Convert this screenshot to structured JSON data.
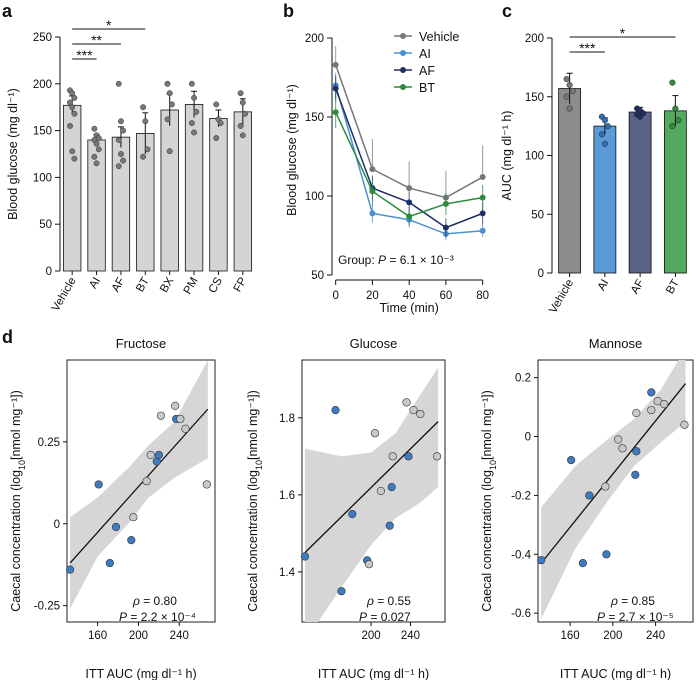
{
  "chart_data": [
    {
      "panel": "a",
      "type": "bar",
      "ylabel": "Blood glucose (mg dl⁻¹)",
      "ylim": [
        0,
        250
      ],
      "yticks": [
        "0",
        "50",
        "100",
        "150",
        "200",
        "250"
      ],
      "ytick_values": [
        0,
        50,
        100,
        150,
        200,
        250
      ],
      "categories": [
        "Vehicle",
        "AI",
        "AF",
        "BT",
        "BX",
        "PM",
        "CS",
        "FP"
      ],
      "values": [
        177,
        140,
        143,
        147,
        172,
        178,
        163,
        170
      ],
      "errors": [
        10,
        6,
        11,
        22,
        17,
        14,
        9,
        14
      ],
      "bar_color": "#d4d4d4",
      "points": [
        [
          193,
          190,
          185,
          180,
          175,
          168,
          155,
          128,
          120
        ],
        [
          152,
          145,
          142,
          140,
          136,
          130,
          122,
          115
        ],
        [
          200,
          160,
          150,
          140,
          125,
          118,
          112
        ],
        [
          175,
          160,
          130,
          122
        ],
        [
          200,
          190,
          178,
          162,
          128
        ],
        [
          200,
          185,
          170,
          158,
          148
        ],
        [
          178,
          162,
          158,
          142
        ],
        [
          190,
          180,
          168,
          155,
          145
        ]
      ],
      "significance": [
        {
          "from": "Vehicle",
          "to": "AI",
          "label": "***"
        },
        {
          "from": "Vehicle",
          "to": "AF",
          "label": "**"
        },
        {
          "from": "Vehicle",
          "to": "BT",
          "label": "*"
        }
      ]
    },
    {
      "panel": "b",
      "type": "line",
      "xlabel": "Time (min)",
      "ylabel": "Blood glucose (mg dl⁻¹)",
      "x": [
        0,
        20,
        40,
        60,
        80
      ],
      "xticks": [
        "0",
        "20",
        "40",
        "60",
        "80"
      ],
      "xlim": [
        -2,
        84
      ],
      "ylim": [
        50,
        200
      ],
      "yticks": [
        "50",
        "100",
        "150",
        "200"
      ],
      "ytick_values": [
        50,
        100,
        150,
        200
      ],
      "series": [
        {
          "name": "Vehicle",
          "color": "#777777",
          "values": [
            183,
            117,
            105,
            99,
            112
          ],
          "errors": [
            12,
            19,
            17,
            17,
            20
          ]
        },
        {
          "name": "AI",
          "color": "#4a90d4",
          "values": [
            170,
            89,
            85,
            76,
            78
          ],
          "errors": [
            8,
            6,
            5,
            4,
            4
          ]
        },
        {
          "name": "AF",
          "color": "#1e2f66",
          "values": [
            168,
            105,
            96,
            80,
            89
          ],
          "errors": [
            8,
            8,
            7,
            6,
            7
          ]
        },
        {
          "name": "BT",
          "color": "#2e8b3e",
          "values": [
            153,
            103,
            87,
            95,
            99
          ],
          "errors": [
            10,
            9,
            6,
            7,
            8
          ]
        }
      ],
      "annotation_label": "Group: ",
      "annotation_p": "P",
      "annotation_value": " = 6.1 × 10⁻³"
    },
    {
      "panel": "c",
      "type": "bar",
      "ylabel": "AUC (mg dl⁻¹ h)",
      "ylim": [
        0,
        200
      ],
      "yticks": [
        "0",
        "50",
        "100",
        "150",
        "200"
      ],
      "ytick_values": [
        0,
        50,
        100,
        150,
        200
      ],
      "categories": [
        "Vehicle",
        "AI",
        "AF",
        "BT"
      ],
      "values": [
        157,
        125,
        137,
        138
      ],
      "errors": [
        13,
        7,
        4,
        13
      ],
      "colors": [
        "#8c8c8c",
        "#5b9bd5",
        "#5a6387",
        "#55a860"
      ],
      "point_colors": [
        "#777777",
        "#2f6fb5",
        "#1e2f66",
        "#2e8b3e"
      ],
      "points": [
        [
          165,
          160,
          155,
          150,
          140
        ],
        [
          133,
          130,
          125,
          118,
          110
        ],
        [
          140,
          138,
          136,
          135,
          133
        ],
        [
          162,
          140,
          130,
          125
        ]
      ],
      "significance": [
        {
          "from": "Vehicle",
          "to": "AI",
          "label": "***"
        },
        {
          "from": "Vehicle",
          "to": "BT",
          "label": "*"
        }
      ]
    },
    {
      "panel": "d",
      "type": "scatter",
      "xlabel": "ITT AUC (mg dl⁻¹ h)",
      "ylabel_main": "Caecal concentration (log",
      "ylabel_sub": "10",
      "ylabel_end": "[nmol mg⁻¹])",
      "xlim": [
        130,
        275
      ],
      "legend_groups": {
        "treated_color": "#3d7cc0",
        "vehicle_color": "#c8c8c8"
      },
      "plots": [
        {
          "title": "Fructose",
          "xticks": [
            "160",
            "200",
            "240"
          ],
          "xtick_values": [
            160,
            200,
            240
          ],
          "ylim": [
            -0.3,
            0.5
          ],
          "yticks": [
            "-0.25",
            "0",
            "0.25"
          ],
          "ytick_values": [
            -0.25,
            0,
            0.25
          ],
          "rho_label": "ρ",
          "rho_value": " = 0.80",
          "p_label": "P",
          "p_value": " = 2.2 × 10⁻⁴",
          "fit": [
            [
              133,
              -0.12
            ],
            [
              268,
              0.35
            ]
          ],
          "band": {
            "x": [
              133,
              160,
              190,
              210,
              235,
              268
            ],
            "upper": [
              0.02,
              0.08,
              0.17,
              0.24,
              0.31,
              0.5
            ],
            "lower": [
              -0.26,
              -0.1,
              0.0,
              0.08,
              0.14,
              0.2
            ]
          },
          "points": [
            {
              "x": 133,
              "y": -0.14,
              "g": "treated"
            },
            {
              "x": 161,
              "y": 0.12,
              "g": "treated"
            },
            {
              "x": 172,
              "y": -0.12,
              "g": "treated"
            },
            {
              "x": 178,
              "y": -0.01,
              "g": "treated"
            },
            {
              "x": 193,
              "y": -0.05,
              "g": "treated"
            },
            {
              "x": 218,
              "y": 0.19,
              "g": "treated"
            },
            {
              "x": 220,
              "y": 0.21,
              "g": "treated"
            },
            {
              "x": 237,
              "y": 0.32,
              "g": "treated"
            },
            {
              "x": 195,
              "y": 0.02,
              "g": "vehicle"
            },
            {
              "x": 208,
              "y": 0.13,
              "g": "vehicle"
            },
            {
              "x": 212,
              "y": 0.21,
              "g": "vehicle"
            },
            {
              "x": 222,
              "y": 0.33,
              "g": "vehicle"
            },
            {
              "x": 236,
              "y": 0.36,
              "g": "vehicle"
            },
            {
              "x": 241,
              "y": 0.32,
              "g": "vehicle"
            },
            {
              "x": 246,
              "y": 0.29,
              "g": "vehicle"
            },
            {
              "x": 267,
              "y": 0.12,
              "g": "vehicle"
            }
          ]
        },
        {
          "title": "Glucose",
          "xticks": [
            "200",
            "240"
          ],
          "xtick_values": [
            200,
            240
          ],
          "ylim": [
            1.27,
            1.95
          ],
          "yticks": [
            "1.4",
            "1.6",
            "1.8"
          ],
          "ytick_values": [
            1.4,
            1.6,
            1.8
          ],
          "rho_label": "ρ",
          "rho_value": " = 0.55",
          "p_label": "P",
          "p_value": " = 0.027",
          "fit": [
            [
              133,
              1.45
            ],
            [
              268,
              1.79
            ]
          ],
          "band": {
            "x": [
              133,
              170,
              200,
              225,
              250,
              268
            ],
            "upper": [
              1.72,
              1.7,
              1.71,
              1.76,
              1.86,
              1.93
            ],
            "lower": [
              1.22,
              1.36,
              1.47,
              1.54,
              1.58,
              1.62
            ]
          },
          "points": [
            {
              "x": 133,
              "y": 1.44,
              "g": "treated"
            },
            {
              "x": 164,
              "y": 1.82,
              "g": "treated"
            },
            {
              "x": 170,
              "y": 1.35,
              "g": "treated"
            },
            {
              "x": 181,
              "y": 1.55,
              "g": "treated"
            },
            {
              "x": 196,
              "y": 1.43,
              "g": "treated"
            },
            {
              "x": 219,
              "y": 1.52,
              "g": "treated"
            },
            {
              "x": 221,
              "y": 1.62,
              "g": "treated"
            },
            {
              "x": 238,
              "y": 1.7,
              "g": "treated"
            },
            {
              "x": 198,
              "y": 1.42,
              "g": "vehicle"
            },
            {
              "x": 204,
              "y": 1.76,
              "g": "vehicle"
            },
            {
              "x": 210,
              "y": 1.61,
              "g": "vehicle"
            },
            {
              "x": 222,
              "y": 1.7,
              "g": "vehicle"
            },
            {
              "x": 236,
              "y": 1.84,
              "g": "vehicle"
            },
            {
              "x": 243,
              "y": 1.82,
              "g": "vehicle"
            },
            {
              "x": 250,
              "y": 1.81,
              "g": "vehicle"
            },
            {
              "x": 267,
              "y": 1.7,
              "g": "vehicle"
            }
          ]
        },
        {
          "title": "Mannose",
          "xticks": [
            "160",
            "200",
            "240"
          ],
          "xtick_values": [
            160,
            200,
            240
          ],
          "ylim": [
            -0.63,
            0.26
          ],
          "yticks": [
            "-0.6",
            "-0.4",
            "-0.2",
            "0",
            "0.2"
          ],
          "ytick_values": [
            -0.6,
            -0.4,
            -0.2,
            0,
            0.2
          ],
          "rho_label": "ρ",
          "rho_value": " = 0.85",
          "p_label": "P",
          "p_value": " = 2.7 × 10⁻⁵",
          "fit": [
            [
              133,
              -0.43
            ],
            [
              268,
              0.18
            ]
          ],
          "band": {
            "x": [
              133,
              165,
              195,
              220,
              245,
              268
            ],
            "upper": [
              -0.24,
              -0.1,
              -0.01,
              0.06,
              0.16,
              0.3
            ],
            "lower": [
              -0.62,
              -0.38,
              -0.22,
              -0.1,
              -0.02,
              0.05
            ]
          },
          "points": [
            {
              "x": 133,
              "y": -0.42,
              "g": "treated"
            },
            {
              "x": 161,
              "y": -0.08,
              "g": "treated"
            },
            {
              "x": 172,
              "y": -0.43,
              "g": "treated"
            },
            {
              "x": 178,
              "y": -0.2,
              "g": "treated"
            },
            {
              "x": 194,
              "y": -0.4,
              "g": "treated"
            },
            {
              "x": 221,
              "y": -0.13,
              "g": "treated"
            },
            {
              "x": 222,
              "y": -0.05,
              "g": "treated"
            },
            {
              "x": 236,
              "y": 0.15,
              "g": "treated"
            },
            {
              "x": 193,
              "y": -0.17,
              "g": "vehicle"
            },
            {
              "x": 205,
              "y": -0.01,
              "g": "vehicle"
            },
            {
              "x": 209,
              "y": -0.04,
              "g": "vehicle"
            },
            {
              "x": 222,
              "y": 0.08,
              "g": "vehicle"
            },
            {
              "x": 236,
              "y": 0.09,
              "g": "vehicle"
            },
            {
              "x": 242,
              "y": 0.12,
              "g": "vehicle"
            },
            {
              "x": 248,
              "y": 0.11,
              "g": "vehicle"
            },
            {
              "x": 267,
              "y": 0.04,
              "g": "vehicle"
            }
          ]
        }
      ]
    }
  ],
  "panel_labels": {
    "a": "a",
    "b": "b",
    "c": "c",
    "d": "d"
  }
}
